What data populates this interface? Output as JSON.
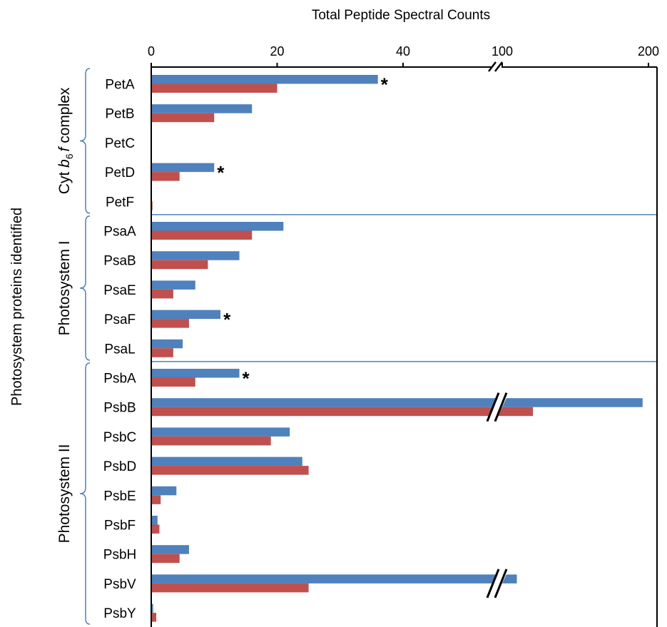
{
  "chart_data": {
    "type": "bar",
    "orientation": "horizontal",
    "title": "",
    "xlabel": "Total Peptide Spectral Counts",
    "ylabel": "Photosystem proteins identified",
    "x_axis": {
      "ticks": [
        "0",
        "20",
        "40",
        "100",
        "200"
      ],
      "scale": "broken",
      "break_between": [
        "40",
        "100"
      ],
      "segments": [
        {
          "from": 0,
          "to": 40
        },
        {
          "from": 100,
          "to": 200
        }
      ],
      "position": "top",
      "grid": false
    },
    "legend": "none",
    "categories": [
      "PetA",
      "PetB",
      "PetC",
      "PetD",
      "PetF",
      "PsaA",
      "PsaB",
      "PsaE",
      "PsaF",
      "PsaL",
      "PsbA",
      "PsbB",
      "PsbC",
      "PsbD",
      "PsbE",
      "PsbF",
      "PsbH",
      "PsbV",
      "PsbY"
    ],
    "groups": [
      {
        "label_prefix": "Cyt ",
        "label_italic": "b",
        "label_sub": "6",
        "label_italic2": "f",
        "label_suffix": " complex",
        "start": 0,
        "end": 4
      },
      {
        "label": "Photosystem I",
        "start": 5,
        "end": 9
      },
      {
        "label": "Photosystem II",
        "start": 10,
        "end": 18
      }
    ],
    "series": [
      {
        "color": "#4F81BD",
        "values": [
          36,
          16,
          0,
          10,
          0,
          21,
          14,
          7,
          11,
          5,
          14,
          196,
          22,
          24,
          4,
          1,
          6,
          110,
          0.3
        ]
      },
      {
        "color": "#C0504D",
        "values": [
          20,
          10,
          0,
          4.5,
          0.2,
          16,
          9,
          3.5,
          6,
          3.5,
          7,
          121,
          19,
          25,
          1.5,
          1.3,
          4.5,
          25,
          0.8
        ]
      }
    ],
    "annotations": [
      {
        "category": "PetA",
        "text": "*"
      },
      {
        "category": "PetD",
        "text": "*"
      },
      {
        "category": "PsaF",
        "text": "*"
      },
      {
        "category": "PsbA",
        "text": "*"
      }
    ]
  }
}
